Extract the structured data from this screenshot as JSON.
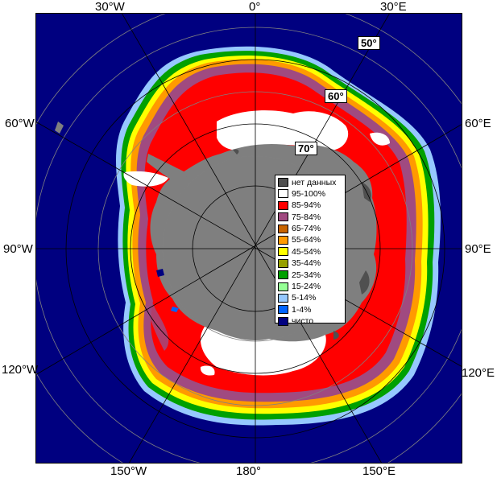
{
  "map": {
    "background_color": "#ffffff",
    "ocean_color": "#000080",
    "land_color": "#7f7f7f",
    "frame_color": "#000000"
  },
  "longitude_labels": {
    "top_30w": "30°W",
    "top_0": "0°",
    "top_30e": "30°E",
    "left_60w": "60°W",
    "left_90w": "90°W",
    "left_120w": "120°W",
    "right_60e": "60°E",
    "right_90e": "90°E",
    "right_120e": "120°E",
    "bottom_150w": "150°W",
    "bottom_180": "180°",
    "bottom_150e": "150°E"
  },
  "latitude_labels": {
    "lat_50": "50°",
    "lat_60": "60°",
    "lat_70": "70°"
  },
  "legend": {
    "items": [
      {
        "label": "нет данных",
        "color": "#505050"
      },
      {
        "label": "95-100%",
        "color": "#ffffff"
      },
      {
        "label": "85-94%",
        "color": "#ff0000"
      },
      {
        "label": "75-84%",
        "color": "#a04a80"
      },
      {
        "label": "65-74%",
        "color": "#c86400"
      },
      {
        "label": "55-64%",
        "color": "#ff9a00"
      },
      {
        "label": "45-54%",
        "color": "#ffff00"
      },
      {
        "label": "35-44%",
        "color": "#96a000"
      },
      {
        "label": "25-34%",
        "color": "#00a000"
      },
      {
        "label": "15-24%",
        "color": "#96ff96"
      },
      {
        "label": "5-14%",
        "color": "#96c8ff"
      },
      {
        "label": "1-4%",
        "color": "#0064ff"
      },
      {
        "label": "чисто",
        "color": "#000080"
      }
    ]
  }
}
